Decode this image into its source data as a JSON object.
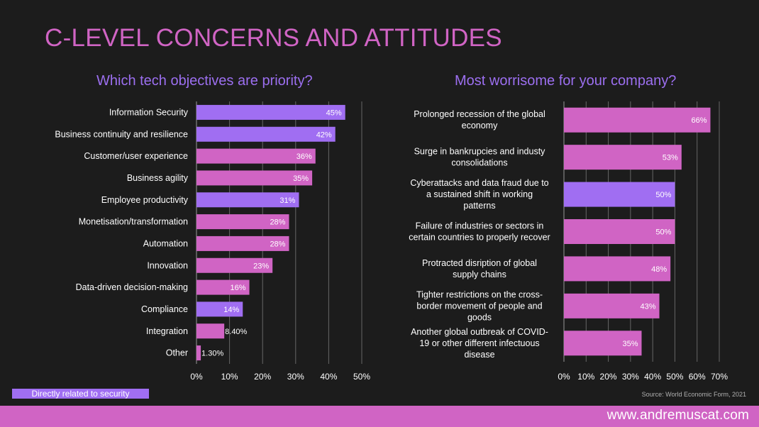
{
  "page": {
    "title": "C-LEVEL CONCERNS AND ATTITUDES",
    "legend_label": "Directly related to security",
    "source": "Source: World Economic Form, 2021",
    "url": "www.andremuscat.com"
  },
  "colors": {
    "background": "#1c1c1c",
    "pink": "#d064c4",
    "purple": "#a06ef2",
    "text": "#ffffff",
    "grid": "#666666"
  },
  "chart_data": [
    {
      "type": "bar",
      "orientation": "horizontal",
      "title": "Which tech objectives are priority?",
      "categories": [
        "Information Security",
        "Business continuity and resilience",
        "Customer/user experience",
        "Business agility",
        "Employee productivity",
        "Monetisation/transformation",
        "Automation",
        "Innovation",
        "Data-driven decision-making",
        "Compliance",
        "Integration",
        "Other"
      ],
      "values": [
        45,
        42,
        36,
        35,
        31,
        28,
        28,
        23,
        16,
        14,
        8.4,
        1.3
      ],
      "labels": [
        "45%",
        "42%",
        "36%",
        "35%",
        "31%",
        "28%",
        "28%",
        "23%",
        "16%",
        "14%",
        "8.40%",
        "1.30%"
      ],
      "security_related": [
        true,
        true,
        false,
        false,
        true,
        false,
        false,
        false,
        false,
        true,
        false,
        false
      ],
      "xlim": [
        0,
        50
      ],
      "ticks": [
        "0%",
        "10%",
        "20%",
        "30%",
        "40%",
        "50%"
      ],
      "grid": true
    },
    {
      "type": "bar",
      "orientation": "horizontal",
      "title": "Most worrisome for your company?",
      "categories": [
        [
          "Prolonged recession of the global",
          "economy"
        ],
        [
          "Surge in bankrupcies and industy",
          "consolidations"
        ],
        [
          "Cyberattacks and data fraud due to",
          "a sustained shift in working",
          "patterns"
        ],
        [
          "Failure of industries or sectors in",
          "certain countries to properly recover"
        ],
        [
          "Protracted disription of global",
          "supply chains"
        ],
        [
          "Tighter restrictions on the cross-",
          "border movement of people and",
          "goods"
        ],
        [
          "Another global outbreak of COVID-",
          "19 or other different infectuous",
          "disease"
        ]
      ],
      "values": [
        66,
        53,
        50,
        50,
        48,
        43,
        35
      ],
      "labels": [
        "66%",
        "53%",
        "50%",
        "50%",
        "48%",
        "43%",
        "35%"
      ],
      "security_related": [
        false,
        false,
        true,
        false,
        false,
        false,
        false
      ],
      "xlim": [
        0,
        70
      ],
      "ticks": [
        "0%",
        "10%",
        "20%",
        "30%",
        "40%",
        "50%",
        "60%",
        "70%"
      ],
      "grid": true
    }
  ]
}
